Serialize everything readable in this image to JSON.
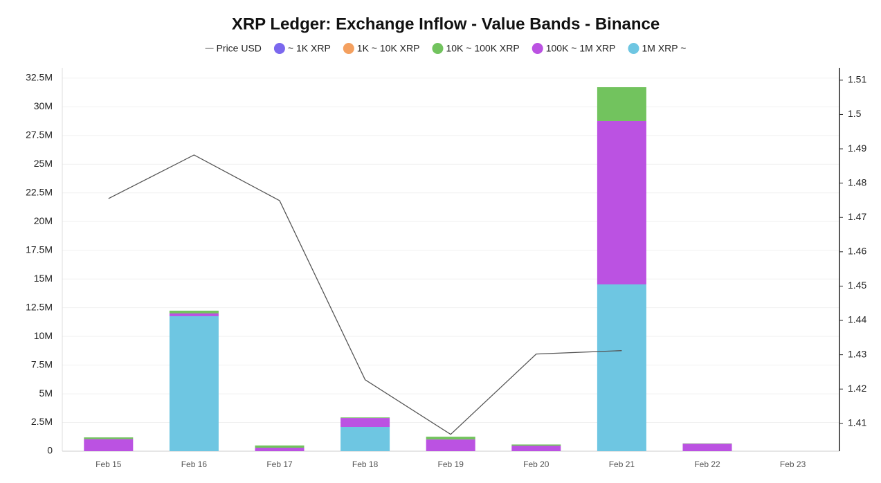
{
  "chart_data": {
    "type": "bar",
    "stacked": true,
    "title": "XRP Ledger: Exchange Inflow - Value Bands - Binance",
    "categories": [
      "Feb 15",
      "Feb 16",
      "Feb 17",
      "Feb 18",
      "Feb 19",
      "Feb 20",
      "Feb 21",
      "Feb 22",
      "Feb 23"
    ],
    "series": [
      {
        "name": "Price USD",
        "type": "line",
        "axis": "y2",
        "color": "#555555",
        "values": [
          1.4755,
          1.4882,
          1.4749,
          1.4227,
          1.4068,
          1.4302,
          1.4312,
          null,
          null
        ]
      },
      {
        "name": "~ 1K XRP",
        "type": "bar",
        "color": "#7b68ee",
        "values": [
          0,
          0,
          0,
          0,
          0,
          0,
          0.02,
          0,
          0
        ]
      },
      {
        "name": "1K ~ 10K XRP",
        "type": "bar",
        "color": "#f4a05f",
        "values": [
          0.01,
          0.01,
          0.01,
          0.01,
          0.01,
          0.01,
          0.1,
          0.01,
          0
        ]
      },
      {
        "name": "10K ~ 100K XRP",
        "type": "bar",
        "color": "#72c35e",
        "values": [
          150000,
          240000,
          200000,
          50000,
          240000,
          100000,
          2950000,
          30000,
          0
        ]
      },
      {
        "name": "100K ~ 1M XRP",
        "type": "bar",
        "color": "#bb52e2",
        "values": [
          1050000,
          240000,
          300000,
          780000,
          1020000,
          480000,
          14230000,
          650000,
          0
        ]
      },
      {
        "name": "1M XRP ~",
        "type": "bar",
        "color": "#6ec6e2",
        "values": [
          0,
          11760000,
          0,
          2110000,
          0,
          0,
          14530000,
          0,
          0
        ]
      }
    ],
    "ylim": [
      0,
      33400000
    ],
    "yticks": [
      0,
      {
        "value": 2500000,
        "label": "2.5M"
      },
      {
        "value": 5000000,
        "label": "5M"
      },
      {
        "value": 7500000,
        "label": "7.5M"
      },
      {
        "value": 10000000,
        "label": "10M"
      },
      {
        "value": 12500000,
        "label": "12.5M"
      },
      {
        "value": 15000000,
        "label": "15M"
      },
      {
        "value": 17500000,
        "label": "17.5M"
      },
      {
        "value": 20000000,
        "label": "20M"
      },
      {
        "value": 22500000,
        "label": "22.5M"
      },
      {
        "value": 25000000,
        "label": "25M"
      },
      {
        "value": 27500000,
        "label": "27.5M"
      },
      {
        "value": 30000000,
        "label": "30M"
      },
      {
        "value": 32500000,
        "label": "32.5M"
      }
    ],
    "y2lim": [
      1.4019,
      1.5136
    ],
    "y2ticks": [
      1.41,
      1.42,
      1.43,
      1.44,
      1.45,
      1.46,
      1.47,
      1.48,
      1.49,
      1.5,
      1.51
    ],
    "grid": true
  }
}
